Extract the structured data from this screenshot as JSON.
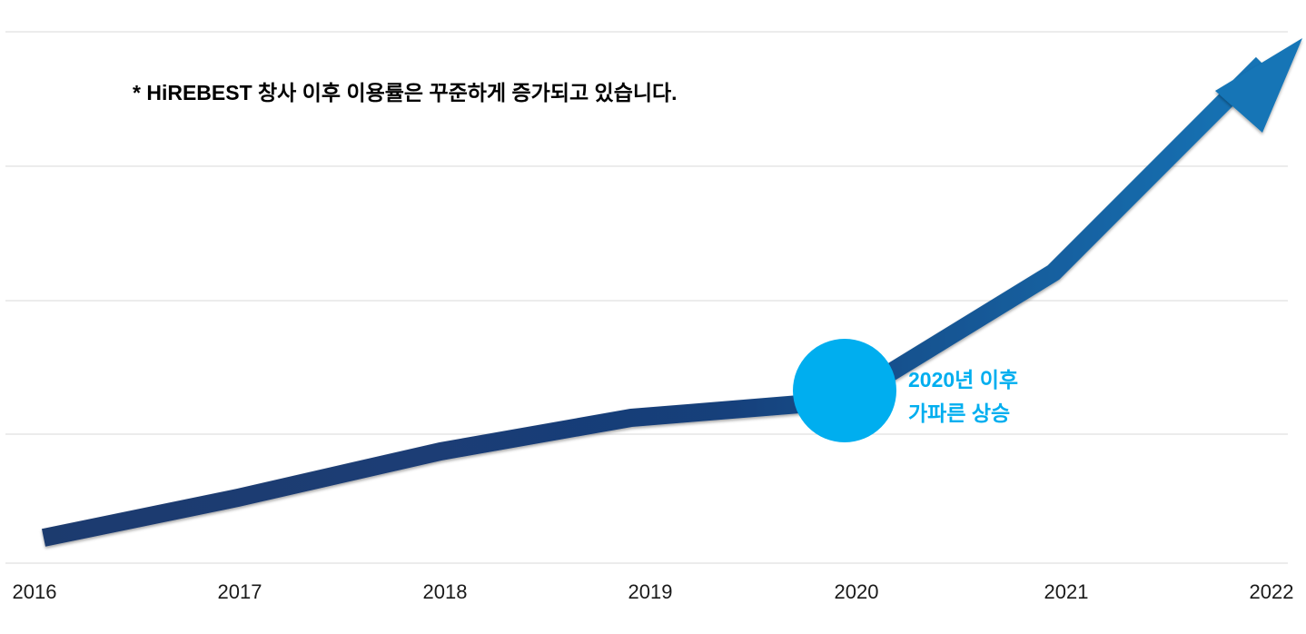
{
  "chart_data": {
    "type": "line",
    "categories": [
      "2016",
      "2017",
      "2018",
      "2019",
      "2020",
      "2021",
      "2022"
    ],
    "series": [
      {
        "values": [
          1,
          2,
          3.2,
          4.1,
          4.6,
          8.0,
          14.0
        ]
      }
    ],
    "grid": true,
    "legend": "none",
    "annotations": {
      "note": "* HiREBEST 창사 이후 이용률은 꾸준하게 증가되고 있습니다.",
      "highlight_line1": "2020년 이후",
      "highlight_line2": "가파른 상승"
    },
    "colors": {
      "line_start": "#1d3a6e",
      "line_end": "#1274b6",
      "highlight": "#00aeef",
      "note_text": "#000000",
      "tick_text": "#1a1a1a",
      "grid": "#e6e6e6"
    }
  }
}
